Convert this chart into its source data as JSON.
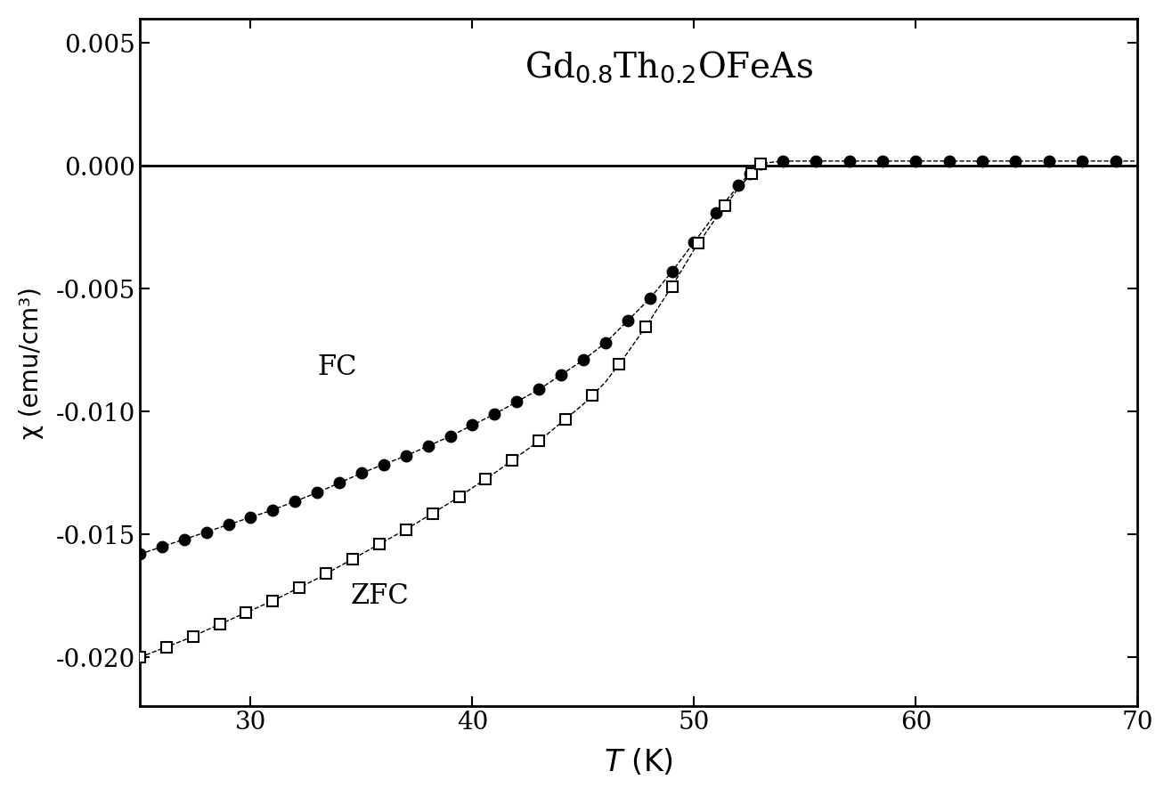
{
  "title": "Gd$_{0.8}$Th$_{0.2}$OFeAs",
  "xlim": [
    25,
    70
  ],
  "ylim": [
    -0.022,
    0.006
  ],
  "xlabel": "T (K)",
  "ylabel": "χ (emu/cm³)",
  "xticks": [
    30,
    40,
    50,
    60,
    70
  ],
  "yticks": [
    0.005,
    0.0,
    -0.005,
    -0.01,
    -0.015,
    -0.02
  ],
  "ytick_labels": [
    "0.005",
    "0.000",
    "-0.005",
    "-0.010",
    "-0.015",
    "-0.020"
  ],
  "fc_label": "FC",
  "zfc_label": "ZFC",
  "background_color": "#ffffff",
  "line_color": "#000000",
  "Tc": 53.0,
  "fc_knots_T": [
    25,
    27,
    29,
    31,
    33,
    35,
    37,
    39,
    41,
    43,
    45,
    46,
    47,
    48,
    49,
    50,
    51,
    52,
    52.5,
    53.0,
    54,
    55,
    57,
    60,
    65,
    70
  ],
  "fc_knots_Y": [
    -0.0158,
    -0.0152,
    -0.0146,
    -0.014,
    -0.0133,
    -0.0125,
    -0.0118,
    -0.011,
    -0.0101,
    -0.0091,
    -0.0079,
    -0.0072,
    -0.0063,
    -0.0054,
    -0.0043,
    -0.0031,
    -0.0019,
    -0.0008,
    -0.0003,
    0.0001,
    0.0002,
    0.0002,
    0.0002,
    0.0002,
    0.0002,
    0.0002
  ],
  "zfc_knots_T": [
    25,
    27,
    29,
    31,
    33,
    35,
    37,
    39,
    41,
    43,
    45,
    46,
    47,
    48,
    49,
    50,
    51,
    52,
    52.5,
    53.0,
    54
  ],
  "zfc_knots_Y": [
    -0.02,
    -0.0193,
    -0.0185,
    -0.0177,
    -0.0168,
    -0.0158,
    -0.0148,
    -0.0137,
    -0.0125,
    -0.0112,
    -0.0097,
    -0.0088,
    -0.0076,
    -0.0063,
    -0.0049,
    -0.0034,
    -0.0021,
    -0.0009,
    -0.0004,
    0.0001,
    0.0002
  ],
  "fc_marker_T_low": [
    25,
    26,
    27,
    28,
    29,
    30,
    31,
    32,
    33,
    34,
    35,
    36,
    37,
    38,
    39,
    40,
    41,
    42,
    43,
    44,
    45,
    46,
    47,
    48,
    49,
    50,
    51,
    52,
    52.5,
    53
  ],
  "fc_marker_T_high": [
    54,
    55.5,
    57,
    58.5,
    60,
    61.5,
    63,
    64.5,
    66,
    67.5,
    69
  ],
  "zfc_marker_T": [
    25,
    26.2,
    27.4,
    28.6,
    29.8,
    31,
    32.2,
    33.4,
    34.6,
    35.8,
    37,
    38.2,
    39.4,
    40.6,
    41.8,
    43,
    44.2,
    45.4,
    46.6,
    47.8,
    49,
    50.2,
    51.4,
    52.6,
    53.0
  ]
}
